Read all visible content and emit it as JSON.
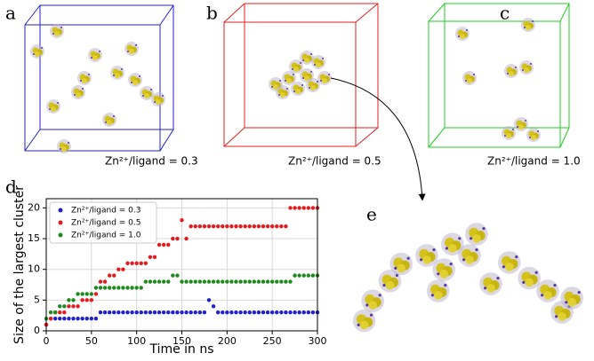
{
  "panels": {
    "a": {
      "letter": "a",
      "caption": "Zn²⁺/ligand = 0.3"
    },
    "b": {
      "letter": "b",
      "caption": "Zn²⁺/ligand = 0.5"
    },
    "c": {
      "letter": "c",
      "caption": "Zn²⁺/ligand = 1.0"
    },
    "e": {
      "letter": "e"
    }
  },
  "chart_data": {
    "type": "scatter",
    "letter": "d",
    "xlabel": "Time in ns",
    "ylabel": "Size of the largest cluster",
    "xlim": [
      0,
      300
    ],
    "ylim": [
      0,
      21.5
    ],
    "xticks": [
      0,
      50,
      100,
      150,
      200,
      250,
      300
    ],
    "yticks": [
      0,
      5,
      10,
      15,
      20
    ],
    "grid": true,
    "legend": "upper left",
    "x": [
      0,
      5,
      10,
      15,
      20,
      25,
      30,
      35,
      40,
      45,
      50,
      55,
      60,
      65,
      70,
      75,
      80,
      85,
      90,
      95,
      100,
      105,
      110,
      115,
      120,
      125,
      130,
      135,
      140,
      145,
      150,
      155,
      160,
      165,
      170,
      175,
      180,
      185,
      190,
      195,
      200,
      205,
      210,
      215,
      220,
      225,
      230,
      235,
      240,
      245,
      250,
      255,
      260,
      265,
      270,
      275,
      280,
      285,
      290,
      295,
      300
    ],
    "series": [
      {
        "name": "Zn²⁺/ligand = 0.3",
        "color": "#1f1fcc",
        "values": [
          1,
          2,
          2,
          2,
          2,
          2,
          2,
          2,
          2,
          2,
          2,
          2,
          3,
          3,
          3,
          3,
          3,
          3,
          3,
          3,
          3,
          3,
          3,
          3,
          3,
          3,
          3,
          3,
          3,
          3,
          3,
          3,
          3,
          3,
          3,
          3,
          5,
          4,
          3,
          3,
          3,
          3,
          3,
          3,
          3,
          3,
          3,
          3,
          3,
          3,
          3,
          3,
          3,
          3,
          3,
          3,
          3,
          3,
          3,
          3,
          3
        ]
      },
      {
        "name": "Zn²⁺/ligand = 0.5",
        "color": "#e8191c",
        "values": [
          1,
          2,
          3,
          3,
          3,
          4,
          4,
          4,
          5,
          5,
          5,
          6,
          8,
          8,
          9,
          9,
          10,
          10,
          11,
          11,
          11,
          11,
          11,
          12,
          12,
          14,
          14,
          14,
          15,
          15,
          18,
          15,
          17,
          17,
          17,
          17,
          17,
          17,
          17,
          17,
          17,
          17,
          17,
          17,
          17,
          17,
          17,
          17,
          17,
          17,
          17,
          17,
          17,
          17,
          20,
          20,
          20,
          20,
          20,
          20,
          20
        ]
      },
      {
        "name": "Zn²⁺/ligand = 1.0",
        "color": "#1e8a1e",
        "values": [
          2,
          3,
          3,
          4,
          4,
          5,
          5,
          6,
          6,
          6,
          6,
          7,
          7,
          7,
          7,
          7,
          7,
          7,
          7,
          7,
          7,
          7,
          8,
          8,
          8,
          8,
          8,
          8,
          9,
          9,
          8,
          8,
          8,
          8,
          8,
          8,
          8,
          8,
          8,
          8,
          8,
          8,
          8,
          8,
          8,
          8,
          8,
          8,
          8,
          8,
          8,
          8,
          8,
          8,
          8,
          9,
          9,
          9,
          9,
          9,
          9
        ]
      }
    ]
  }
}
